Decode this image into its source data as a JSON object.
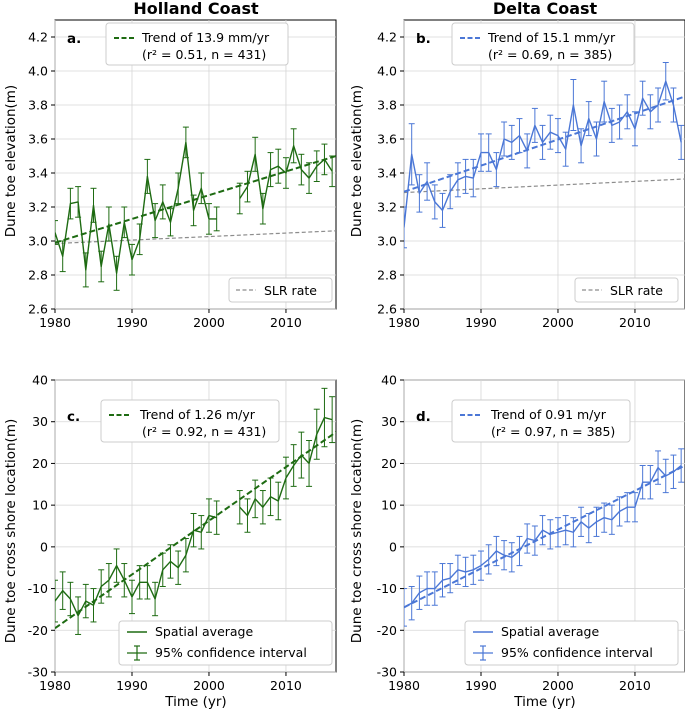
{
  "figure": {
    "col_titles": [
      "Holland Coast",
      "Delta Coast"
    ],
    "x_axis_label": "Time (yr)"
  },
  "chart_data": [
    {
      "type": "line",
      "panel": "a.",
      "ylabel": "Dune toe elevation(m)",
      "xlim": [
        1980,
        2016.5
      ],
      "ylim": [
        2.6,
        4.3
      ],
      "xticks": [
        1980,
        1990,
        2000,
        2010
      ],
      "yticks": [
        2.6,
        2.8,
        3.0,
        3.2,
        3.4,
        3.6,
        3.8,
        4.0,
        4.2
      ],
      "ytick_decimals": 1,
      "color": "#1e6b12",
      "series": [
        {
          "name": "Spatial average",
          "x": [
            1980,
            1981,
            1982,
            1983,
            1984,
            1985,
            1986,
            1987,
            1988,
            1989,
            1990,
            1991,
            1992,
            1993,
            1994,
            1995,
            1996,
            1997,
            1998,
            1999,
            2000,
            2001,
            2002,
            2003,
            2004,
            2005,
            2006,
            2007,
            2008,
            2009,
            2010,
            2011,
            2012,
            2013,
            2014,
            2015,
            2016
          ],
          "y": [
            3.05,
            2.91,
            3.22,
            3.23,
            2.83,
            3.21,
            2.85,
            3.1,
            2.81,
            3.11,
            2.89,
            3.01,
            3.38,
            3.12,
            3.23,
            3.11,
            3.31,
            3.58,
            3.18,
            3.31,
            3.13,
            3.13,
            null,
            null,
            3.25,
            3.32,
            3.51,
            3.19,
            3.42,
            3.44,
            3.4,
            3.56,
            3.42,
            3.37,
            3.44,
            3.48,
            3.41
          ],
          "err": [
            0.07,
            0.09,
            0.09,
            0.09,
            0.1,
            0.1,
            0.09,
            0.1,
            0.1,
            0.09,
            0.09,
            0.09,
            0.1,
            0.1,
            0.1,
            0.08,
            0.09,
            0.09,
            0.09,
            0.09,
            0.09,
            0.07,
            null,
            null,
            0.09,
            0.09,
            0.1,
            0.09,
            0.1,
            0.1,
            0.09,
            0.1,
            0.09,
            0.09,
            0.09,
            0.09,
            0.09
          ]
        }
      ],
      "trend": {
        "x": [
          1980,
          2016.5
        ],
        "y": [
          2.99,
          3.5
        ]
      },
      "slr": {
        "x": [
          1980,
          2016.5
        ],
        "y": [
          2.985,
          3.06
        ]
      },
      "legend_trend_text": "Trend of 13.9 mm/yr",
      "legend_r2_text": "(r² = 0.51, n = 431)",
      "legend_slr_text": "SLR rate"
    },
    {
      "type": "line",
      "panel": "b.",
      "ylabel": "Dune toe elevation(m)",
      "xlim": [
        1980,
        2016.5
      ],
      "ylim": [
        2.6,
        4.3
      ],
      "xticks": [
        1980,
        1990,
        2000,
        2010
      ],
      "yticks": [
        2.6,
        2.8,
        3.0,
        3.2,
        3.4,
        3.6,
        3.8,
        4.0,
        4.2
      ],
      "ytick_decimals": 1,
      "color": "#4b77d6",
      "series": [
        {
          "name": "Spatial average",
          "x": [
            1980,
            1981,
            1982,
            1983,
            1984,
            1985,
            1986,
            1987,
            1988,
            1989,
            1990,
            1991,
            1992,
            1993,
            1994,
            1995,
            1996,
            1997,
            1998,
            1999,
            2000,
            2001,
            2002,
            2003,
            2004,
            2005,
            2006,
            2007,
            2008,
            2009,
            2010,
            2011,
            2012,
            2013,
            2014,
            2015,
            2016
          ],
          "y": [
            3.08,
            3.51,
            3.28,
            3.35,
            3.23,
            3.18,
            3.29,
            3.36,
            3.38,
            3.37,
            3.52,
            3.52,
            3.42,
            3.6,
            3.58,
            3.62,
            3.53,
            3.68,
            3.58,
            3.64,
            3.62,
            3.54,
            3.8,
            3.56,
            3.72,
            3.6,
            3.82,
            3.68,
            3.7,
            3.76,
            3.66,
            3.84,
            3.76,
            3.8,
            3.94,
            3.8,
            3.58
          ],
          "err": [
            0.12,
            0.18,
            0.11,
            0.11,
            0.1,
            0.1,
            0.1,
            0.1,
            0.1,
            0.11,
            0.11,
            0.11,
            0.1,
            0.1,
            0.1,
            0.1,
            0.1,
            0.1,
            0.1,
            0.1,
            0.1,
            0.1,
            0.15,
            0.1,
            0.1,
            0.1,
            0.12,
            0.1,
            0.1,
            0.1,
            0.1,
            0.1,
            0.1,
            0.1,
            0.11,
            0.1,
            0.1
          ]
        }
      ],
      "trend": {
        "x": [
          1980,
          2016.5
        ],
        "y": [
          3.29,
          3.85
        ]
      },
      "slr": {
        "x": [
          1980,
          2016.5
        ],
        "y": [
          3.285,
          3.365
        ]
      },
      "legend_trend_text": "Trend of 15.1 mm/yr",
      "legend_r2_text": "(r² = 0.69, n = 385)",
      "legend_slr_text": "SLR rate"
    },
    {
      "type": "line",
      "panel": "c.",
      "ylabel": "Dune toe cross shore location(m)",
      "xlim": [
        1980,
        2016.5
      ],
      "ylim": [
        -30,
        40
      ],
      "xticks": [
        1980,
        1990,
        2000,
        2010
      ],
      "yticks": [
        -30,
        -20,
        -10,
        0,
        10,
        20,
        30,
        40
      ],
      "ytick_decimals": 0,
      "color": "#1e6b12",
      "series": [
        {
          "name": "Spatial average",
          "x": [
            1980,
            1981,
            1982,
            1983,
            1984,
            1985,
            1986,
            1987,
            1988,
            1989,
            1990,
            1991,
            1992,
            1993,
            1994,
            1995,
            1996,
            1997,
            1998,
            1999,
            2000,
            2001,
            2002,
            2003,
            2004,
            2005,
            2006,
            2007,
            2008,
            2009,
            2010,
            2011,
            2012,
            2013,
            2014,
            2015,
            2016
          ],
          "y": [
            -13,
            -10.5,
            -12.5,
            -16.5,
            -13,
            -14,
            -9.5,
            -8,
            -4.5,
            -8,
            -12,
            -8.5,
            -8.5,
            -12.5,
            -5.5,
            -3.5,
            -5,
            -2,
            4,
            3.5,
            7.5,
            7,
            null,
            null,
            9.5,
            7.5,
            11.5,
            9.5,
            12,
            11,
            16.5,
            19.5,
            22,
            20,
            27,
            31,
            30.5
          ],
          "err": [
            5,
            4.5,
            4,
            4.5,
            4,
            4,
            4,
            4,
            4,
            4,
            4,
            4,
            4,
            4,
            4,
            4,
            4,
            4,
            4,
            4,
            4,
            4,
            null,
            null,
            4,
            4,
            4.5,
            4,
            4.5,
            4.5,
            5,
            5,
            5.5,
            5.5,
            6,
            7,
            5.5
          ]
        }
      ],
      "trend": {
        "x": [
          1980,
          2016.5
        ],
        "y": [
          -19.5,
          27.5
        ]
      },
      "legend_trend_text": "Trend of 1.26 m/yr",
      "legend_r2_text": "(r² = 0.92, n = 431)",
      "legend_avg_text": "Spatial average",
      "legend_ci_text": "95% confidence interval"
    },
    {
      "type": "line",
      "panel": "d.",
      "ylabel": "Dune toe cross shore location(m)",
      "xlim": [
        1980,
        2016.5
      ],
      "ylim": [
        -30,
        40
      ],
      "xticks": [
        1980,
        1990,
        2000,
        2010
      ],
      "yticks": [
        -30,
        -20,
        -10,
        0,
        10,
        20,
        30,
        40
      ],
      "ytick_decimals": 0,
      "color": "#4b77d6",
      "series": [
        {
          "name": "Spatial average",
          "x": [
            1980,
            1981,
            1982,
            1983,
            1984,
            1985,
            1986,
            1987,
            1988,
            1989,
            1990,
            1991,
            1992,
            1993,
            1994,
            1995,
            1996,
            1997,
            1998,
            1999,
            2000,
            2001,
            2002,
            2003,
            2004,
            2005,
            2006,
            2007,
            2008,
            2009,
            2010,
            2011,
            2012,
            2013,
            2014,
            2015,
            2016
          ],
          "y": [
            -14.5,
            -13.5,
            -11,
            -10,
            -10,
            -8,
            -7.5,
            -5.5,
            -6,
            -5.5,
            -4.5,
            -3,
            -1,
            -2,
            -2.5,
            -1,
            2,
            1.5,
            4,
            3,
            3.5,
            4,
            3.5,
            6,
            4.5,
            6,
            7,
            6.5,
            8.5,
            9.5,
            9.5,
            15.5,
            15.5,
            19,
            17,
            18,
            19.5
          ],
          "err": [
            4.5,
            4,
            4,
            4,
            4,
            4,
            3.5,
            3.5,
            3.5,
            3.5,
            3.5,
            3.5,
            3.5,
            3.5,
            3.5,
            3.5,
            3.5,
            3.5,
            3.5,
            3.5,
            3.5,
            3.5,
            3.5,
            3.5,
            3.5,
            3.5,
            3.5,
            3.5,
            3.5,
            3.5,
            3.5,
            4,
            4,
            4,
            4,
            4,
            4
          ]
        }
      ],
      "trend": {
        "x": [
          1980,
          2016.5
        ],
        "y": [
          -14.5,
          19.5
        ]
      },
      "legend_trend_text": "Trend of 0.91 m/yr",
      "legend_r2_text": "(r² = 0.97, n = 385)",
      "legend_avg_text": "Spatial average",
      "legend_ci_text": "95% confidence interval"
    }
  ]
}
